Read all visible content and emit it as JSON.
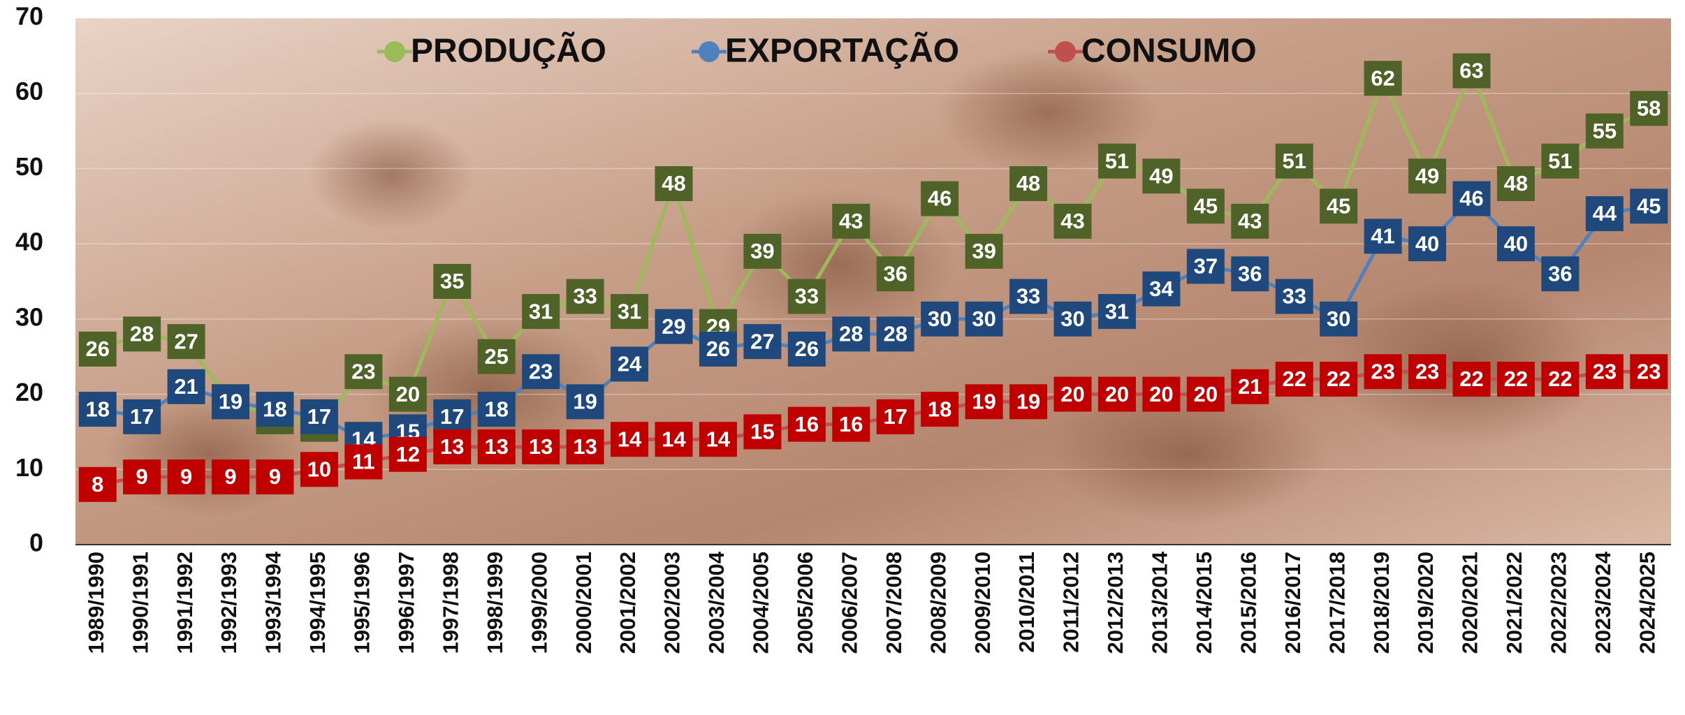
{
  "chart_data": {
    "type": "line",
    "categories": [
      "1989/1990",
      "1990/1991",
      "1991/1992",
      "1992/1993",
      "1993/1994",
      "1994/1995",
      "1995/1996",
      "1996/1997",
      "1997/1998",
      "1998/1999",
      "1999/2000",
      "2000/2001",
      "2001/2002",
      "2002/2003",
      "2003/2004",
      "2004/2005",
      "2005/2006",
      "2006/2007",
      "2007/2008",
      "2008/2009",
      "2009/2010",
      "2010/2011",
      "2011/2012",
      "2012/2013",
      "2013/2014",
      "2014/2015",
      "2015/2016",
      "2016/2017",
      "2017/2018",
      "2018/2019",
      "2019/2020",
      "2020/2021",
      "2021/2022",
      "2022/2023",
      "2023/2024",
      "2024/2025"
    ],
    "series": [
      {
        "name": "PRODUÇÃO",
        "color": "#9bbb59",
        "label_color": "#4f6228",
        "values": [
          26,
          28,
          27,
          19,
          17,
          16,
          23,
          20,
          35,
          25,
          31,
          33,
          31,
          48,
          29,
          39,
          33,
          43,
          36,
          46,
          39,
          48,
          43,
          51,
          49,
          45,
          43,
          51,
          45,
          62,
          49,
          63,
          48,
          51,
          55,
          58
        ]
      },
      {
        "name": "EXPORTAÇÃO",
        "color": "#4f81bd",
        "label_color": "#1f497d",
        "values": [
          18,
          17,
          21,
          19,
          18,
          17,
          14,
          15,
          17,
          18,
          23,
          19,
          24,
          29,
          26,
          27,
          26,
          28,
          28,
          30,
          30,
          33,
          30,
          31,
          34,
          37,
          36,
          33,
          30,
          41,
          40,
          46,
          40,
          36,
          44,
          45
        ]
      },
      {
        "name": "CONSUMO",
        "color": "#c0504d",
        "label_color": "#c00000",
        "values": [
          8,
          9,
          9,
          9,
          9,
          10,
          11,
          12,
          13,
          13,
          13,
          13,
          14,
          14,
          14,
          15,
          16,
          16,
          17,
          18,
          19,
          19,
          20,
          20,
          20,
          20,
          21,
          22,
          22,
          23,
          23,
          22,
          22,
          22,
          23,
          23
        ]
      }
    ],
    "ylim": [
      0,
      70
    ],
    "yticks": [
      0,
      10,
      20,
      30,
      40,
      50,
      60,
      70
    ],
    "grid": true,
    "legend": "top"
  }
}
